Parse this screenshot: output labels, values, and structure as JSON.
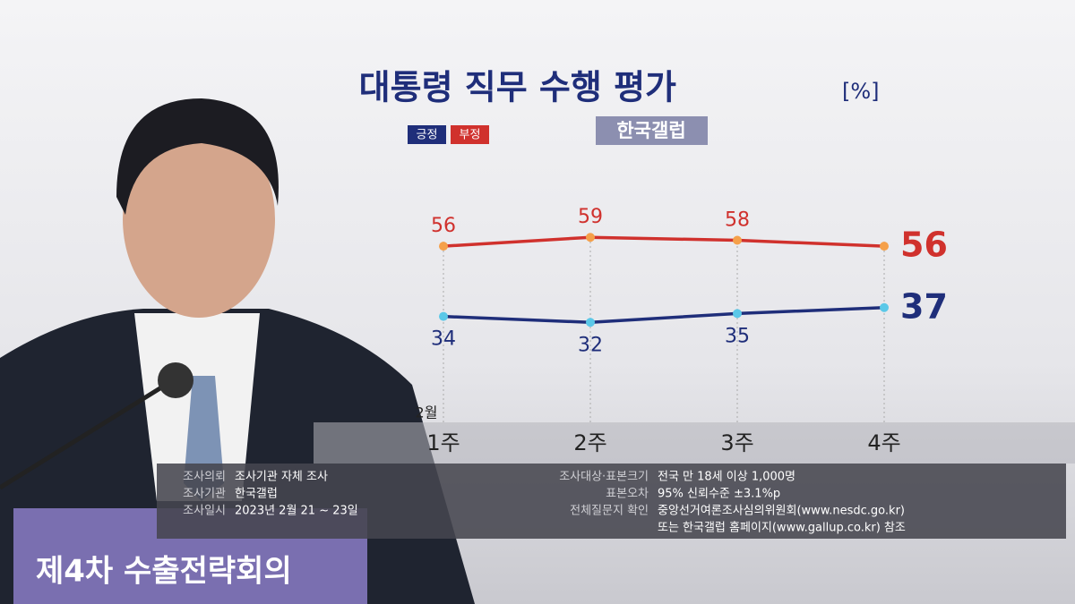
{
  "chart_data": {
    "type": "line",
    "title": "대통령 직무 수행 평가",
    "unit": "[%]",
    "subtitle": "한국갤럽",
    "x_group_label": "2월",
    "categories": [
      "1주",
      "2주",
      "3주",
      "4주"
    ],
    "series": [
      {
        "name": "긍정",
        "color": "#1f2e7a",
        "marker_color": "#5bc8e8",
        "values": [
          34,
          32,
          35,
          37
        ]
      },
      {
        "name": "부정",
        "color": "#d0312d",
        "marker_color": "#f5a04a",
        "values": [
          56,
          59,
          58,
          56
        ]
      }
    ]
  },
  "survey_info": {
    "left": [
      {
        "key": "조사의뢰",
        "value": "조사기관 자체 조사"
      },
      {
        "key": "조사기관",
        "value": "한국갤럽"
      },
      {
        "key": "조사일시",
        "value": "2023년 2월 21 ~ 23일"
      }
    ],
    "right": [
      {
        "key": "조사대상·표본크기",
        "value": "전국 만 18세 이상 1,000명"
      },
      {
        "key": "표본오차",
        "value": "95% 신뢰수준 ±3.1%p"
      },
      {
        "key": "전체질문지 확인",
        "value": "중앙선거여론조사심의위원회(www.nesdc.go.kr)"
      },
      {
        "value": "또는 한국갤럽 홈페이지(www.gallup.co.kr) 참조"
      }
    ]
  },
  "photo_caption": "제4차 수출전략회의"
}
